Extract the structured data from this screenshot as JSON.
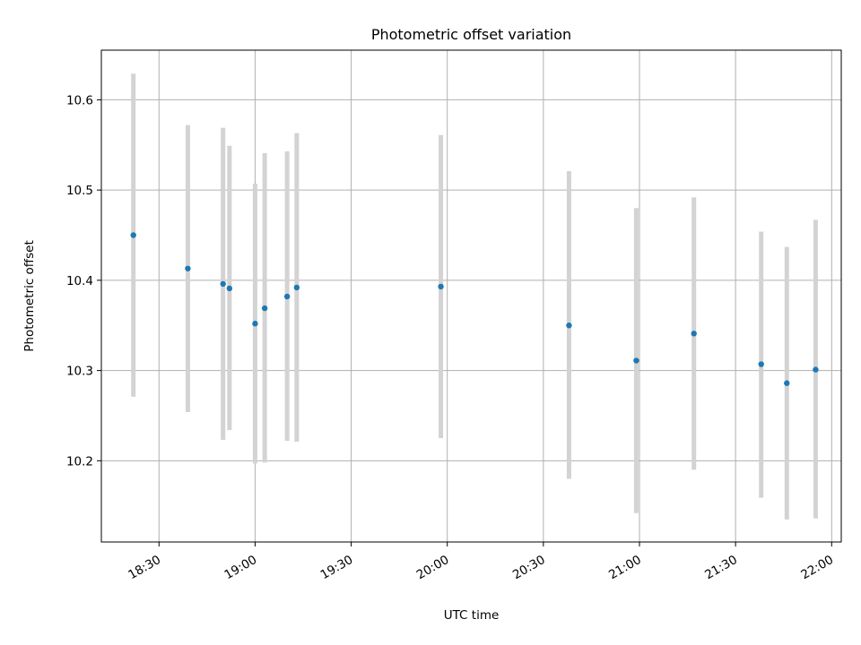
{
  "chart_data": {
    "type": "scatter",
    "title": "Photometric offset variation",
    "xlabel": "UTC time",
    "ylabel": "Photometric offset",
    "x_axis_kind": "time",
    "xlim": [
      "18:12",
      "22:03"
    ],
    "ylim": [
      10.11,
      10.655
    ],
    "x_ticks": [
      "18:30",
      "19:00",
      "19:30",
      "20:00",
      "20:30",
      "21:00",
      "21:30",
      "22:00"
    ],
    "y_ticks": [
      10.2,
      10.3,
      10.4,
      10.5,
      10.6
    ],
    "grid": true,
    "legend": "none",
    "marker_color": "#1f77b4",
    "errorbar_color": "#d3d3d3",
    "series": [
      {
        "points": [
          {
            "x": "18:22",
            "y": 10.45,
            "low": 10.271,
            "high": 10.629
          },
          {
            "x": "18:39",
            "y": 10.413,
            "low": 10.254,
            "high": 10.572
          },
          {
            "x": "18:50",
            "y": 10.396,
            "low": 10.223,
            "high": 10.569
          },
          {
            "x": "18:52",
            "y": 10.391,
            "low": 10.234,
            "high": 10.549
          },
          {
            "x": "19:00",
            "y": 10.352,
            "low": 10.197,
            "high": 10.507
          },
          {
            "x": "19:03",
            "y": 10.369,
            "low": 10.198,
            "high": 10.541
          },
          {
            "x": "19:10",
            "y": 10.382,
            "low": 10.222,
            "high": 10.543
          },
          {
            "x": "19:13",
            "y": 10.392,
            "low": 10.221,
            "high": 10.563
          },
          {
            "x": "19:58",
            "y": 10.393,
            "low": 10.225,
            "high": 10.561
          },
          {
            "x": "20:38",
            "y": 10.35,
            "low": 10.18,
            "high": 10.521
          },
          {
            "x": "20:59",
            "y": 10.311,
            "low": 10.142,
            "high": 10.48
          },
          {
            "x": "21:17",
            "y": 10.341,
            "low": 10.19,
            "high": 10.492
          },
          {
            "x": "21:38",
            "y": 10.307,
            "low": 10.159,
            "high": 10.454
          },
          {
            "x": "21:46",
            "y": 10.286,
            "low": 10.135,
            "high": 10.437
          },
          {
            "x": "21:55",
            "y": 10.301,
            "low": 10.136,
            "high": 10.467
          }
        ]
      }
    ]
  }
}
